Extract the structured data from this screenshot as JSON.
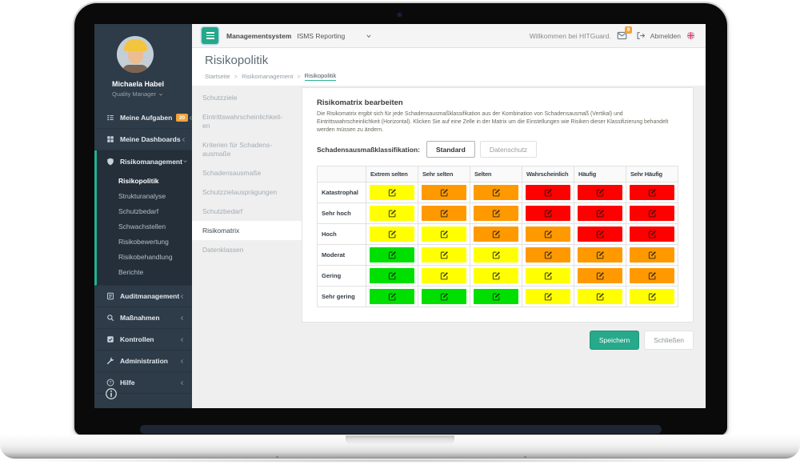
{
  "topbar": {
    "brand": "Managementsystem",
    "reporting_label": "ISMS Reporting",
    "welcome_text": "Willkommen bei HITGuard.",
    "mail_badge_count": "9",
    "logout_label": "Abmelden"
  },
  "user": {
    "name": "Michaela Habel",
    "role": "Quality Manager"
  },
  "sidebar": {
    "items": [
      {
        "label": "Meine Aufgaben",
        "icon": "tasks-icon",
        "badge": "20",
        "chevron": "left"
      },
      {
        "label": "Meine Dashboards",
        "icon": "dashboard-icon",
        "chevron": "left"
      },
      {
        "label": "Risikomanagement",
        "icon": "shield-icon",
        "chevron": "down",
        "expanded": true,
        "children": [
          "Risikopolitik",
          "Strukturanalyse",
          "Schutzbedarf",
          "Schwachstellen",
          "Risikobewertung",
          "Risikobehandlung",
          "Berichte"
        ],
        "active_child": "Risikopolitik"
      },
      {
        "label": "Auditmanagement",
        "icon": "audit-icon",
        "chevron": "left"
      },
      {
        "label": "Maßnahmen",
        "icon": "search-icon",
        "chevron": "left"
      },
      {
        "label": "Kontrollen",
        "icon": "checkbox-icon",
        "chevron": "left"
      },
      {
        "label": "Administration",
        "icon": "tools-icon",
        "chevron": "left"
      },
      {
        "label": "Hilfe",
        "icon": "help-icon",
        "chevron": "left"
      }
    ]
  },
  "page": {
    "title": "Risikopolitik",
    "breadcrumb": [
      "Startseite",
      "Risikomanagement",
      "Risikopolitik"
    ]
  },
  "subnav": {
    "items": [
      "Schutzziele",
      "Eintrittswahrscheinlichkeit-\nen",
      "Kriterien für Schadens-\nausmaße",
      "Schadensausmaße",
      "Schutzzielausprägungen",
      "Schutzbedarf",
      "Risikomatrix",
      "Datenklassen"
    ],
    "active": "Risikomatrix"
  },
  "content": {
    "heading": "Risikomatrix bearbeiten",
    "description": "Die Risikomatrix ergibt sich für jede Schadensausmaßklassifikation aus der Kombination von Schadensausmaß (Vertikal) und Eintrittswahrscheinlichkeit (Horizontal). Klicken Sie auf eine Zelle in der Matrix um die Einstellungen wie Risiken dieser Klassifizierung behandelt werden müssen zu ändern.",
    "classification_label": "Schadensausmaßklassifikation:",
    "classification_options": [
      "Standard",
      "Datenschutz"
    ],
    "classification_active": "Standard",
    "save_label": "Speichern",
    "close_label": "Schließen"
  },
  "matrix": {
    "columns": [
      "Extrem selten",
      "Sehr selten",
      "Selten",
      "Wahrscheinlich",
      "Häufig",
      "Sehr Häufig"
    ],
    "rows": [
      {
        "label": "Katastrophal",
        "cells": [
          "yellow",
          "orange",
          "orange",
          "red",
          "red",
          "red"
        ]
      },
      {
        "label": "Sehr hoch",
        "cells": [
          "yellow",
          "orange",
          "orange",
          "red",
          "red",
          "red"
        ]
      },
      {
        "label": "Hoch",
        "cells": [
          "yellow",
          "yellow",
          "orange",
          "orange",
          "red",
          "red"
        ]
      },
      {
        "label": "Moderat",
        "cells": [
          "green",
          "yellow",
          "yellow",
          "orange",
          "orange",
          "orange"
        ]
      },
      {
        "label": "Gering",
        "cells": [
          "green",
          "yellow",
          "yellow",
          "yellow",
          "orange",
          "orange"
        ]
      },
      {
        "label": "Sehr gering",
        "cells": [
          "green",
          "green",
          "green",
          "yellow",
          "yellow",
          "yellow"
        ]
      }
    ],
    "cell_colors": {
      "yellow": "#ffff00",
      "orange": "#ff9900",
      "red": "#ff0000",
      "green": "#00e000"
    }
  },
  "colors": {
    "accent": "#27a98b",
    "sidebar_bg": "#2e3b48",
    "badge_orange": "#f0a33c"
  }
}
